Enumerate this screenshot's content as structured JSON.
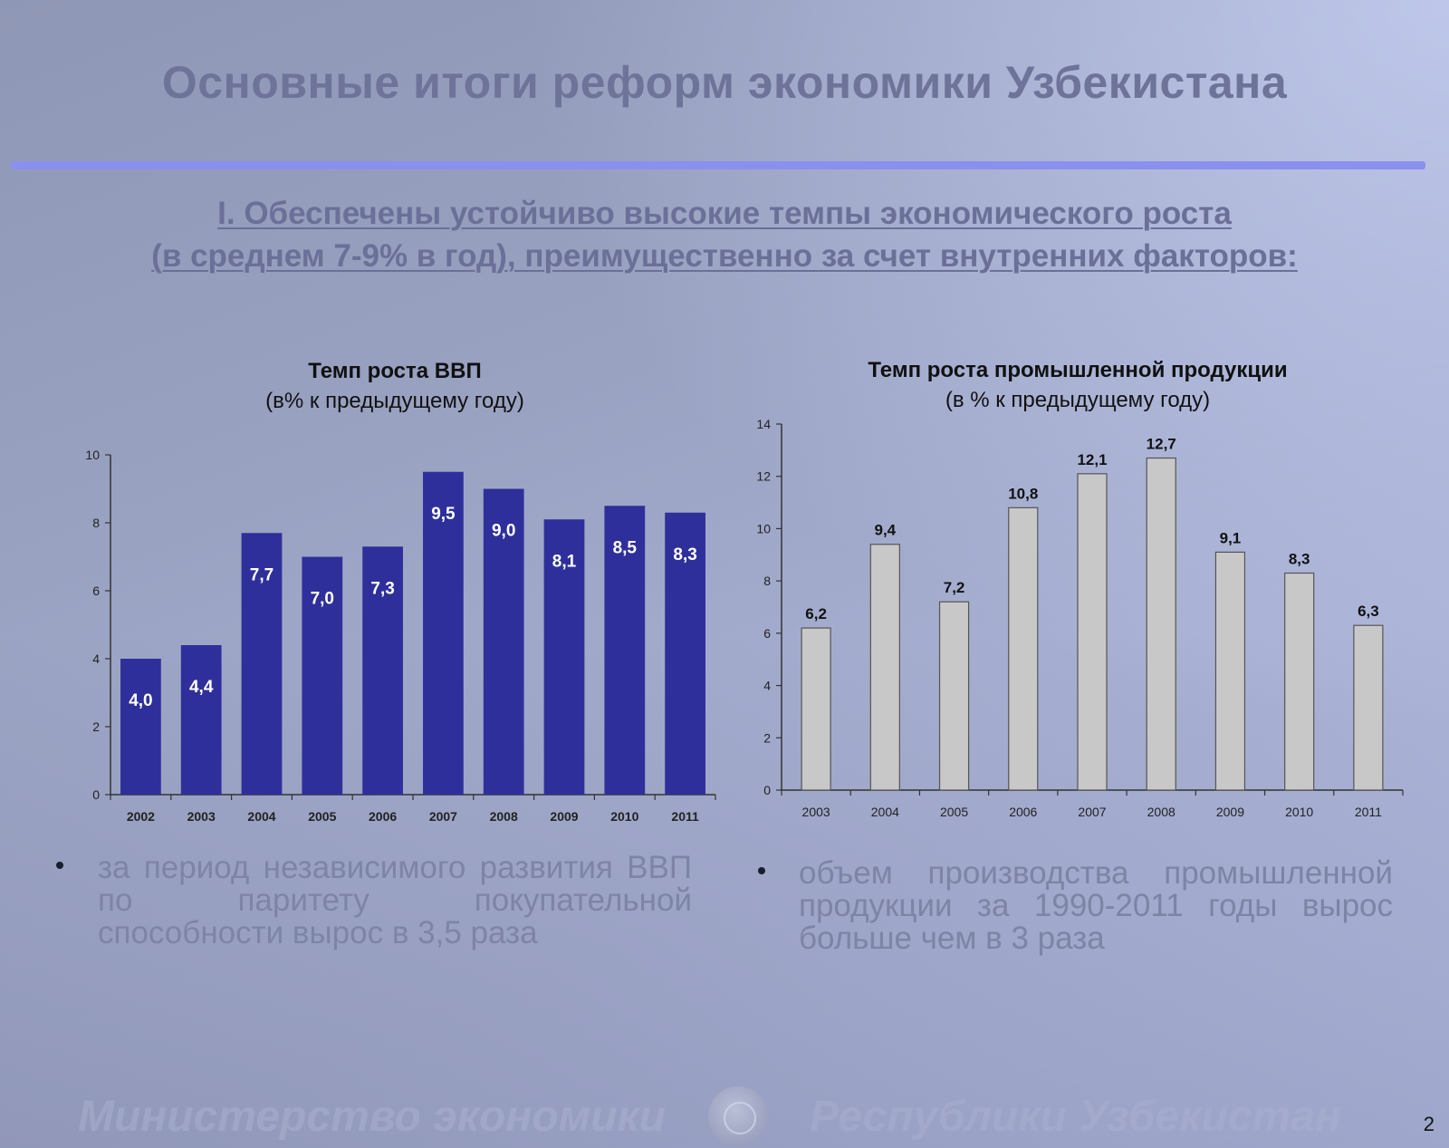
{
  "slide": {
    "title": "Основные итоги реформ экономики Узбекистана",
    "subtitle_line1": "I. Обеспечены устойчиво высокие темпы экономического роста",
    "subtitle_line2": "(в среднем 7-9% в год), преимущественно за счет внутренних факторов:",
    "bullet_left": "за период независимого развития ВВП по паритету покупательной способности вырос в 3,5 раза",
    "bullet_right": "объем производства промышленной продукции за 1990-2011 годы вырос больше чем в 3 раза",
    "footer_left": "Министерство экономики",
    "footer_right": "Республики Узбекистан",
    "page_number": "2",
    "colors": {
      "title": "#6e7499",
      "rule": "#8a90ee",
      "gdp_bars": "#2f2f9b",
      "industry_bars": "#c8c8c8"
    },
    "footer_emblem_icon": "state-emblem-icon"
  },
  "chart_data": [
    {
      "type": "bar",
      "title": "Темп роста ВВП",
      "subtitle": "(в% к предыдущему году)",
      "categories": [
        "2002",
        "2003",
        "2004",
        "2005",
        "2006",
        "2007",
        "2008",
        "2009",
        "2010",
        "2011"
      ],
      "values": [
        4.0,
        4.4,
        7.7,
        7.0,
        7.3,
        9.5,
        9.0,
        8.1,
        8.5,
        8.3
      ],
      "value_labels": [
        "4,0",
        "4,4",
        "7,7",
        "7,0",
        "7,3",
        "9,5",
        "9,0",
        "8,1",
        "8,5",
        "8,3"
      ],
      "data_label_position": "inside-top",
      "ylim": [
        0,
        10
      ],
      "yticks": [
        "0",
        "2",
        "4",
        "6",
        "8",
        "10"
      ],
      "grid": false,
      "legend": "none"
    },
    {
      "type": "bar",
      "title": "Темп роста промышленной продукции",
      "subtitle": "(в % к предыдущему году)",
      "categories": [
        "2003",
        "2004",
        "2005",
        "2006",
        "2007",
        "2008",
        "2009",
        "2010",
        "2011"
      ],
      "values": [
        6.2,
        9.4,
        7.2,
        10.8,
        12.1,
        12.7,
        9.1,
        8.3,
        6.3
      ],
      "value_labels": [
        "6,2",
        "9,4",
        "7,2",
        "10,8",
        "12,1",
        "12,7",
        "9,1",
        "8,3",
        "6,3"
      ],
      "data_label_position": "above",
      "ylim": [
        0,
        14
      ],
      "yticks": [
        "0",
        "2",
        "4",
        "6",
        "8",
        "10",
        "12",
        "14"
      ],
      "grid": false,
      "legend": "none"
    }
  ]
}
